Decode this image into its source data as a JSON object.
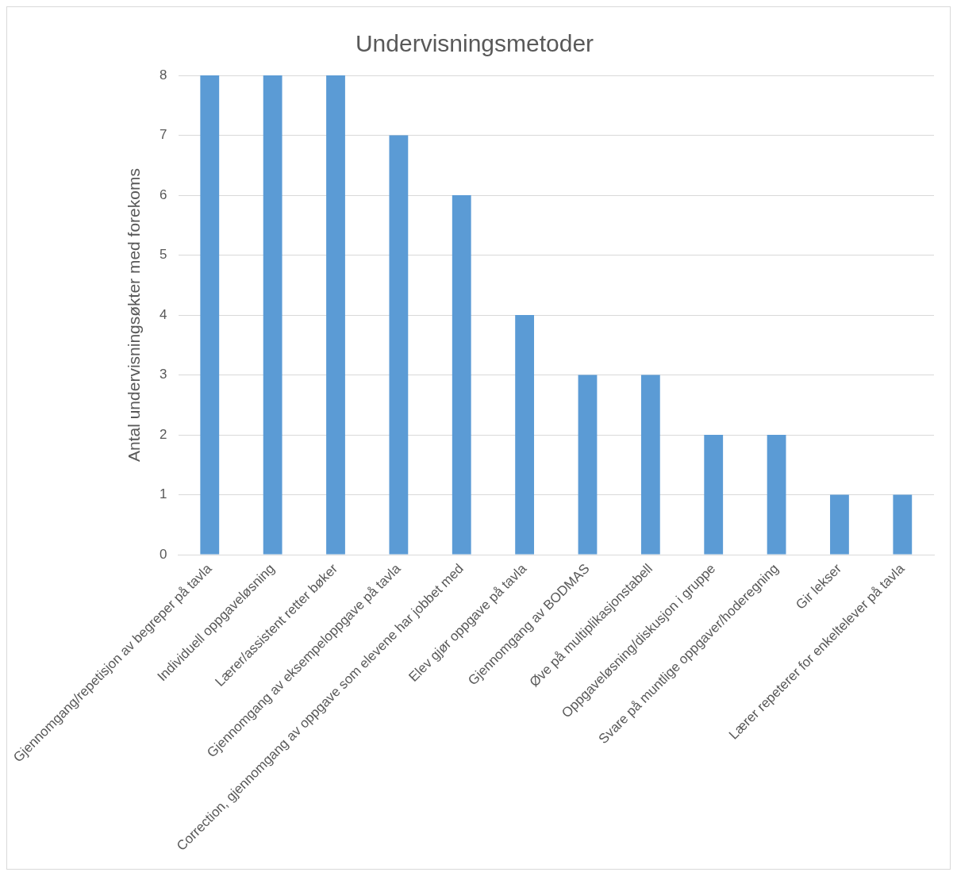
{
  "chart_data": {
    "type": "bar",
    "title": "Undervisningsmetoder",
    "ylabel": "Antal undervisningsøkter med forekoms",
    "categories": [
      "Gjennomgang/repetisjon av begreper på tavla",
      "Individuell oppgaveløsning",
      "Lærer/assistent retter bøker",
      "Gjennomgang av eksempeloppgave på tavla",
      "Correction, gjennomgang av oppgave som elevene har jobbet med",
      "Elev gjør oppgave på tavla",
      "Gjennomgang av BODMAS",
      "Øve på multiplikasjonstabell",
      "Oppgaveløsning/diskusjon i gruppe",
      "Svare på muntlige oppgaver/hoderegning",
      "Gir lekser",
      "Lærer repeterer for enkeltelever på tavla"
    ],
    "values": [
      8,
      8,
      8,
      7,
      6,
      4,
      3,
      3,
      2,
      2,
      1,
      1
    ],
    "color": "#5b9bd5",
    "ylim": [
      0,
      8
    ],
    "yticks": [
      0,
      1,
      2,
      3,
      4,
      5,
      6,
      7,
      8
    ],
    "grid": "y",
    "legend": false
  }
}
